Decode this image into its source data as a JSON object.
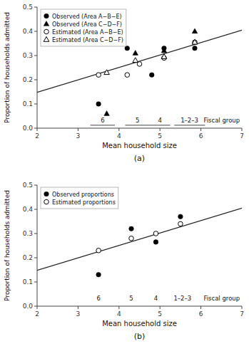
{
  "chart_data": [
    {
      "type": "scatter",
      "title": "(a)",
      "xlabel": "Mean household size",
      "ylabel": "Proportion of households admitted",
      "xlim": [
        2,
        7
      ],
      "ylim": [
        0.0,
        0.5
      ],
      "xticks": [
        2,
        3,
        4,
        5,
        6,
        7
      ],
      "yticks": [
        {
          "value": 0.0,
          "label": "0.0"
        },
        0.1,
        0.2,
        0.3,
        0.4,
        0.5
      ],
      "grid": false,
      "legend": "upper left",
      "series": [
        {
          "type": "line",
          "color": "#222222",
          "x": [
            2.0,
            7.0
          ],
          "values": [
            0.148,
            0.405
          ]
        },
        {
          "name": "Observed (Area A−B−E)",
          "marker": "circle",
          "color": "black",
          "x": [
            3.5,
            4.2,
            4.8,
            5.1,
            5.85
          ],
          "values": [
            0.1,
            0.33,
            0.22,
            0.33,
            0.33
          ]
        },
        {
          "name": "Observed (Area C−D−F)",
          "marker": "triangle",
          "color": "black",
          "x": [
            3.7,
            4.4,
            5.1,
            5.85
          ],
          "values": [
            0.06,
            0.31,
            0.32,
            0.4
          ]
        },
        {
          "name": "Estimated (Area A−B−E)",
          "marker": "open-circle",
          "color": "black",
          "x": [
            3.5,
            4.2,
            4.5,
            5.1,
            5.85
          ],
          "values": [
            0.22,
            0.22,
            0.265,
            0.29,
            0.355
          ]
        },
        {
          "name": "Estimated (Area C−D−F)",
          "marker": "open-triangle",
          "color": "black",
          "x": [
            3.7,
            4.4,
            5.1,
            5.85
          ],
          "values": [
            0.23,
            0.28,
            0.295,
            0.355
          ]
        }
      ],
      "annotations": [
        {
          "text": "6",
          "x": 3.6,
          "y": 0.018,
          "underline": [
            3.3,
            3.9
          ]
        },
        {
          "text": "5",
          "x": 4.45,
          "y": 0.018,
          "underline": [
            4.15,
            4.75
          ]
        },
        {
          "text": "4",
          "x": 5.0,
          "y": 0.018,
          "underline": [
            4.75,
            5.25
          ]
        },
        {
          "text": "1–2–3",
          "x": 5.72,
          "y": 0.018,
          "underline": [
            5.35,
            6.1
          ]
        },
        {
          "text": "Fiscal group",
          "x": 6.95,
          "y": 0.018
        }
      ]
    },
    {
      "type": "scatter",
      "title": "(b)",
      "xlabel": "Mean household size",
      "ylabel": "Proportion of households admitted",
      "xlim": [
        2,
        7
      ],
      "ylim": [
        0.0,
        0.5
      ],
      "xticks": [
        2,
        3,
        4,
        5,
        6,
        7
      ],
      "yticks": [
        {
          "value": 0.0,
          "label": "0.0"
        },
        0.1,
        0.2,
        0.3,
        0.4,
        0.5
      ],
      "grid": false,
      "legend": "upper left",
      "series": [
        {
          "type": "line",
          "color": "#222222",
          "x": [
            2.0,
            7.0
          ],
          "values": [
            0.148,
            0.405
          ]
        },
        {
          "name": "Observed proportions",
          "marker": "circle",
          "color": "black",
          "x": [
            3.5,
            4.3,
            4.9,
            5.5
          ],
          "values": [
            0.13,
            0.32,
            0.265,
            0.37
          ]
        },
        {
          "name": "Estimated proportions",
          "marker": "open-circle",
          "color": "black",
          "x": [
            3.5,
            4.3,
            4.9,
            5.5
          ],
          "values": [
            0.23,
            0.28,
            0.3,
            0.34
          ]
        }
      ],
      "annotations": [
        {
          "text": "6",
          "x": 3.5,
          "y": 0.018
        },
        {
          "text": "5",
          "x": 4.3,
          "y": 0.018
        },
        {
          "text": "4",
          "x": 4.9,
          "y": 0.018
        },
        {
          "text": "1–2–3",
          "x": 5.55,
          "y": 0.018
        },
        {
          "text": "Fiscal group",
          "x": 6.95,
          "y": 0.018
        }
      ]
    }
  ]
}
